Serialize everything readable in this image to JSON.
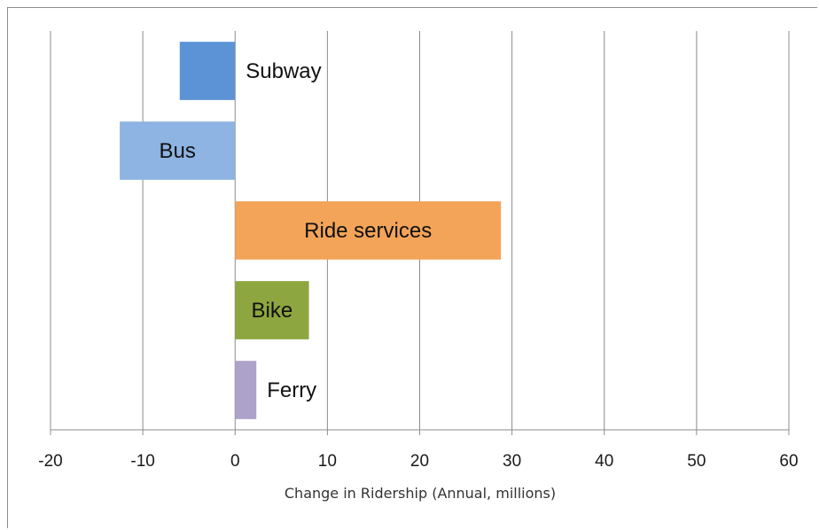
{
  "chart_data": {
    "type": "bar",
    "orientation": "horizontal",
    "categories": [
      "Subway",
      "Bus",
      "Ride services",
      "Bike",
      "Ferry"
    ],
    "values": [
      -6,
      -12.5,
      28.8,
      8,
      2.3
    ],
    "colors": [
      "#5b93d6",
      "#8db4e2",
      "#f3a458",
      "#8ea63f",
      "#ada2ca"
    ],
    "label_inside": [
      false,
      true,
      true,
      true,
      false
    ],
    "xlabel": "Change in Ridership (Annual, millions)",
    "xlim": [
      -20,
      60
    ],
    "xticks": [
      "-20",
      "-10",
      "0",
      "10",
      "20",
      "30",
      "40",
      "50",
      "60"
    ],
    "grid": "vertical"
  }
}
